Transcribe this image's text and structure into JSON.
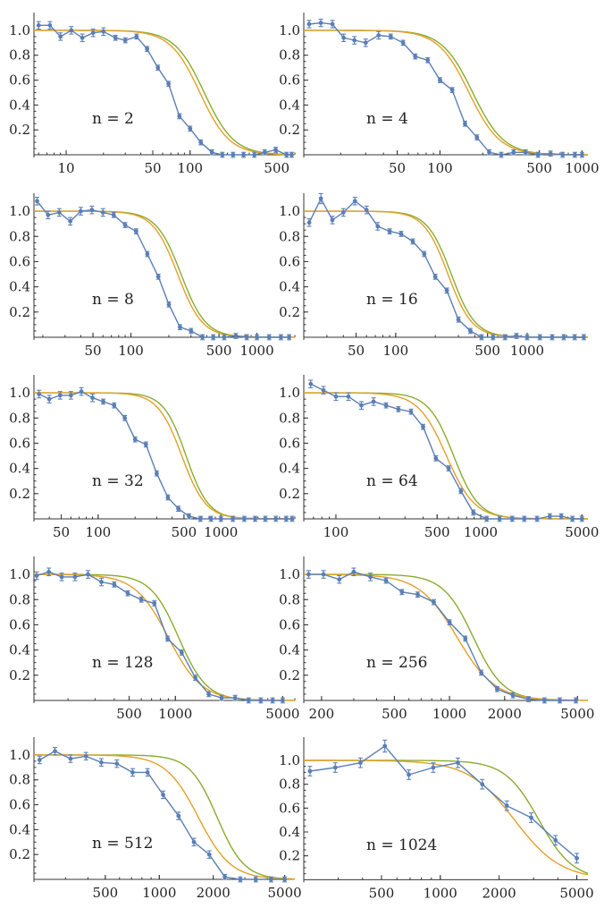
{
  "colors": {
    "data": "#5b7fb5",
    "fit_green": "#8aac2e",
    "fit_orange": "#e3a02a"
  },
  "chart_data": [
    {
      "type": "line",
      "label": "n = 2",
      "xscale": "log",
      "xlim": [
        5.5,
        700
      ],
      "ylim": [
        -0.05,
        1.1
      ],
      "xticks": [
        10,
        50,
        100,
        500
      ],
      "yticks": [
        0.2,
        0.4,
        0.6,
        0.8,
        1.0
      ],
      "series": [
        {
          "kind": "data",
          "color": "data",
          "x": [
            6,
            7.4,
            9,
            11,
            13.5,
            16.5,
            20,
            25,
            30,
            37,
            45,
            55,
            67,
            82,
            100,
            122,
            150,
            182,
            222,
            270,
            330,
            400,
            490,
            600,
            660
          ],
          "y": [
            1.04,
            1.04,
            0.95,
            1.0,
            0.94,
            0.98,
            0.99,
            0.94,
            0.92,
            0.95,
            0.85,
            0.7,
            0.57,
            0.31,
            0.21,
            0.1,
            0.02,
            0.0,
            0.0,
            0.0,
            0.0,
            0.02,
            0.04,
            0.0,
            0.0
          ],
          "err": [
            0.03,
            0.03,
            0.03,
            0.03,
            0.03,
            0.03,
            0.03,
            0.02,
            0.02,
            0.02,
            0.02,
            0.02,
            0.02,
            0.02,
            0.02,
            0.02,
            0.02,
            0.02,
            0.02,
            0.02,
            0.02,
            0.02,
            0.02,
            0.02,
            0.02
          ]
        },
        {
          "kind": "fit",
          "color": "fit_green",
          "x0": 130,
          "w": 0.55
        },
        {
          "kind": "fit",
          "color": "fit_orange",
          "x0": 120,
          "w": 0.55
        }
      ]
    },
    {
      "type": "line",
      "label": "n = 4",
      "xscale": "log",
      "xlim": [
        11,
        1100
      ],
      "ylim": [
        -0.05,
        1.1
      ],
      "xticks": [
        50,
        100,
        500,
        1000
      ],
      "yticks": [
        0.2,
        0.4,
        0.6,
        0.8,
        1.0
      ],
      "series": [
        {
          "kind": "data",
          "color": "data",
          "x": [
            12,
            14.5,
            17.5,
            21,
            25,
            30,
            37,
            45,
            55,
            67,
            82,
            100,
            122,
            150,
            182,
            222,
            270,
            330,
            400,
            490,
            600,
            730,
            890,
            1000
          ],
          "y": [
            1.05,
            1.06,
            1.05,
            0.94,
            0.92,
            0.9,
            0.96,
            0.95,
            0.9,
            0.79,
            0.76,
            0.6,
            0.52,
            0.25,
            0.14,
            0.02,
            0.0,
            0.02,
            0.02,
            0.0,
            0.01,
            0.0,
            0.0,
            0.0
          ],
          "err": [
            0.03,
            0.03,
            0.03,
            0.03,
            0.03,
            0.03,
            0.03,
            0.02,
            0.02,
            0.02,
            0.02,
            0.02,
            0.02,
            0.02,
            0.02,
            0.02,
            0.02,
            0.02,
            0.02,
            0.02,
            0.02,
            0.02,
            0.02,
            0.02
          ]
        },
        {
          "kind": "fit",
          "color": "fit_green",
          "x0": 170,
          "w": 0.5
        },
        {
          "kind": "fit",
          "color": "fit_orange",
          "x0": 160,
          "w": 0.5
        }
      ]
    },
    {
      "type": "line",
      "label": "n = 8",
      "xscale": "log",
      "xlim": [
        17,
        2000
      ],
      "ylim": [
        -0.05,
        1.1
      ],
      "xticks": [
        50,
        100,
        500,
        1000
      ],
      "yticks": [
        0.2,
        0.4,
        0.6,
        0.8,
        1.0
      ],
      "series": [
        {
          "kind": "data",
          "color": "data",
          "x": [
            18,
            22,
            27,
            33,
            40,
            49,
            60,
            73,
            90,
            110,
            135,
            165,
            200,
            245,
            300,
            370,
            450,
            550,
            680,
            830,
            1000,
            1250,
            1550,
            1800
          ],
          "y": [
            1.08,
            0.97,
            0.99,
            0.92,
            1.0,
            1.01,
            0.99,
            0.97,
            0.89,
            0.84,
            0.66,
            0.48,
            0.26,
            0.08,
            0.05,
            0.0,
            0.0,
            0.0,
            0.01,
            0.0,
            0.0,
            0.0,
            0.0,
            0.0
          ],
          "err": [
            0.03,
            0.03,
            0.03,
            0.03,
            0.03,
            0.03,
            0.03,
            0.02,
            0.02,
            0.02,
            0.02,
            0.02,
            0.02,
            0.02,
            0.02,
            0.02,
            0.02,
            0.02,
            0.02,
            0.02,
            0.02,
            0.02,
            0.02,
            0.02
          ]
        },
        {
          "kind": "fit",
          "color": "fit_green",
          "x0": 250,
          "w": 0.45
        },
        {
          "kind": "fit",
          "color": "fit_orange",
          "x0": 235,
          "w": 0.45
        }
      ]
    },
    {
      "type": "line",
      "label": "n = 16",
      "xscale": "log",
      "xlim": [
        20,
        2900
      ],
      "ylim": [
        -0.05,
        1.1
      ],
      "xticks": [
        50,
        100,
        500,
        1000
      ],
      "yticks": [
        0.2,
        0.4,
        0.6,
        0.8,
        1.0
      ],
      "series": [
        {
          "kind": "data",
          "color": "data",
          "x": [
            22,
            27,
            33,
            40,
            49,
            60,
            73,
            90,
            110,
            135,
            165,
            200,
            245,
            300,
            370,
            450,
            550,
            680,
            830,
            1000,
            1250,
            1550,
            1900,
            2300,
            2700
          ],
          "y": [
            0.91,
            1.1,
            0.93,
            0.99,
            1.08,
            1.01,
            0.88,
            0.84,
            0.82,
            0.76,
            0.66,
            0.48,
            0.37,
            0.14,
            0.05,
            0.0,
            0.0,
            0.0,
            0.01,
            0.0,
            0.0,
            0.0,
            0.0,
            0.0,
            0.0
          ],
          "err": [
            0.03,
            0.04,
            0.03,
            0.03,
            0.03,
            0.03,
            0.03,
            0.02,
            0.02,
            0.02,
            0.02,
            0.02,
            0.02,
            0.02,
            0.02,
            0.02,
            0.02,
            0.02,
            0.02,
            0.02,
            0.02,
            0.02,
            0.02,
            0.02,
            0.02
          ]
        },
        {
          "kind": "fit",
          "color": "fit_green",
          "x0": 265,
          "w": 0.42
        },
        {
          "kind": "fit",
          "color": "fit_orange",
          "x0": 250,
          "w": 0.42
        }
      ]
    },
    {
      "type": "line",
      "label": "n = 32",
      "xscale": "log",
      "xlim": [
        30,
        4000
      ],
      "ylim": [
        -0.05,
        1.1
      ],
      "xticks": [
        50,
        100,
        500,
        1000
      ],
      "yticks": [
        0.2,
        0.4,
        0.6,
        0.8,
        1.0
      ],
      "series": [
        {
          "kind": "data",
          "color": "data",
          "x": [
            33,
            40,
            49,
            60,
            73,
            90,
            110,
            135,
            165,
            200,
            245,
            300,
            370,
            450,
            550,
            680,
            830,
            1000,
            1250,
            1550,
            1900,
            2300,
            2800,
            3400,
            3800
          ],
          "y": [
            0.99,
            0.95,
            0.98,
            0.98,
            1.01,
            0.96,
            0.93,
            0.9,
            0.8,
            0.63,
            0.59,
            0.36,
            0.17,
            0.08,
            0.02,
            0.0,
            0.0,
            0.0,
            0.0,
            0.0,
            0.0,
            0.0,
            0.0,
            0.0,
            0.0
          ],
          "err": [
            0.03,
            0.03,
            0.03,
            0.03,
            0.03,
            0.03,
            0.02,
            0.02,
            0.02,
            0.02,
            0.02,
            0.02,
            0.02,
            0.02,
            0.02,
            0.02,
            0.02,
            0.02,
            0.02,
            0.02,
            0.02,
            0.02,
            0.02,
            0.02,
            0.02
          ]
        },
        {
          "kind": "fit",
          "color": "fit_green",
          "x0": 520,
          "w": 0.42
        },
        {
          "kind": "fit",
          "color": "fit_orange",
          "x0": 480,
          "w": 0.45
        }
      ]
    },
    {
      "type": "line",
      "label": "n = 64",
      "xscale": "log",
      "xlim": [
        60,
        5500
      ],
      "ylim": [
        -0.05,
        1.1
      ],
      "xticks": [
        100,
        500,
        1000,
        5000
      ],
      "yticks": [
        0.2,
        0.4,
        0.6,
        0.8,
        1.0
      ],
      "series": [
        {
          "kind": "data",
          "color": "data",
          "x": [
            67,
            82,
            100,
            122,
            150,
            182,
            222,
            270,
            330,
            400,
            490,
            600,
            730,
            890,
            1100,
            1350,
            1650,
            2000,
            2450,
            3000,
            3600,
            4300,
            5000
          ],
          "y": [
            1.07,
            1.02,
            0.97,
            0.97,
            0.9,
            0.93,
            0.9,
            0.87,
            0.85,
            0.73,
            0.48,
            0.4,
            0.22,
            0.05,
            0.0,
            0.0,
            0.0,
            0.0,
            0.0,
            0.02,
            0.02,
            0.0,
            0.0
          ],
          "err": [
            0.03,
            0.03,
            0.03,
            0.03,
            0.03,
            0.03,
            0.02,
            0.02,
            0.02,
            0.02,
            0.02,
            0.02,
            0.02,
            0.02,
            0.02,
            0.02,
            0.02,
            0.02,
            0.02,
            0.02,
            0.02,
            0.02,
            0.02
          ]
        },
        {
          "kind": "fit",
          "color": "fit_green",
          "x0": 650,
          "w": 0.4
        },
        {
          "kind": "fit",
          "color": "fit_orange",
          "x0": 580,
          "w": 0.45
        }
      ]
    },
    {
      "type": "line",
      "label": "n = 128",
      "xscale": "log",
      "xlim": [
        120,
        6000
      ],
      "ylim": [
        -0.05,
        1.1
      ],
      "xticks": [
        500,
        1000,
        5000
      ],
      "yticks": [
        0.2,
        0.4,
        0.6,
        0.8,
        1.0
      ],
      "series": [
        {
          "kind": "data",
          "color": "data",
          "x": [
            125,
            150,
            182,
            222,
            270,
            330,
            400,
            490,
            600,
            730,
            890,
            1100,
            1350,
            1650,
            2000,
            2450,
            3000,
            3600,
            4300,
            5000
          ],
          "y": [
            0.99,
            1.02,
            0.98,
            0.98,
            1.0,
            0.94,
            0.92,
            0.85,
            0.8,
            0.77,
            0.49,
            0.38,
            0.18,
            0.05,
            0.02,
            0.02,
            0.0,
            0.0,
            0.0,
            0.0
          ],
          "err": [
            0.03,
            0.03,
            0.03,
            0.03,
            0.03,
            0.03,
            0.02,
            0.02,
            0.02,
            0.02,
            0.02,
            0.02,
            0.02,
            0.02,
            0.02,
            0.02,
            0.02,
            0.02,
            0.02,
            0.02
          ]
        },
        {
          "kind": "fit",
          "color": "fit_green",
          "x0": 1050,
          "w": 0.42
        },
        {
          "kind": "fit",
          "color": "fit_orange",
          "x0": 900,
          "w": 0.5
        }
      ]
    },
    {
      "type": "line",
      "label": "n = 256",
      "xscale": "log",
      "xlim": [
        160,
        5700
      ],
      "ylim": [
        -0.05,
        1.1
      ],
      "xticks": [
        200,
        500,
        1000,
        2000,
        5000
      ],
      "yticks": [
        0.2,
        0.4,
        0.6,
        0.8,
        1.0
      ],
      "series": [
        {
          "kind": "data",
          "color": "data",
          "x": [
            170,
            205,
            250,
            300,
            370,
            450,
            550,
            670,
            820,
            1000,
            1220,
            1490,
            1820,
            2220,
            2700,
            3300,
            4000,
            4900
          ],
          "y": [
            1.0,
            1.0,
            0.96,
            1.02,
            0.98,
            0.95,
            0.86,
            0.84,
            0.78,
            0.62,
            0.49,
            0.22,
            0.09,
            0.04,
            0.01,
            0.0,
            0.0,
            0.0
          ],
          "err": [
            0.03,
            0.03,
            0.03,
            0.03,
            0.03,
            0.02,
            0.02,
            0.02,
            0.02,
            0.02,
            0.02,
            0.02,
            0.02,
            0.02,
            0.02,
            0.02,
            0.02,
            0.02
          ]
        },
        {
          "kind": "fit",
          "color": "fit_green",
          "x0": 1350,
          "w": 0.38
        },
        {
          "kind": "fit",
          "color": "fit_orange",
          "x0": 1100,
          "w": 0.48
        }
      ]
    },
    {
      "type": "line",
      "label": "n = 512",
      "xscale": "log",
      "xlim": [
        200,
        5700
      ],
      "ylim": [
        -0.05,
        1.1
      ],
      "xticks": [
        500,
        1000,
        2000,
        5000
      ],
      "yticks": [
        0.2,
        0.4,
        0.6,
        0.8,
        1.0
      ],
      "series": [
        {
          "kind": "data",
          "color": "data",
          "x": [
            215,
            262,
            320,
            390,
            475,
            580,
            710,
            860,
            1050,
            1280,
            1560,
            1900,
            2320,
            2830,
            3450,
            4200,
            5000
          ],
          "y": [
            0.96,
            1.03,
            0.97,
            0.99,
            0.94,
            0.93,
            0.86,
            0.86,
            0.68,
            0.51,
            0.3,
            0.2,
            0.02,
            0.0,
            0.0,
            0.0,
            0.0
          ],
          "err": [
            0.03,
            0.03,
            0.03,
            0.03,
            0.03,
            0.03,
            0.03,
            0.03,
            0.03,
            0.03,
            0.03,
            0.03,
            0.02,
            0.02,
            0.02,
            0.02,
            0.02
          ]
        },
        {
          "kind": "fit",
          "color": "fit_green",
          "x0": 2100,
          "w": 0.35
        },
        {
          "kind": "fit",
          "color": "fit_orange",
          "x0": 1650,
          "w": 0.42
        }
      ]
    },
    {
      "type": "line",
      "label": "n = 1024",
      "xscale": "log",
      "xlim": [
        200,
        5700
      ],
      "ylim": [
        -0.05,
        1.15
      ],
      "xticks": [
        500,
        1000,
        2000,
        5000
      ],
      "yticks": [
        0.2,
        0.4,
        0.6,
        0.8,
        1.0
      ],
      "series": [
        {
          "kind": "data",
          "color": "data",
          "x": [
            215,
            290,
            390,
            520,
            690,
            920,
            1230,
            1640,
            2190,
            2920,
            3890,
            5000
          ],
          "y": [
            0.91,
            0.94,
            0.98,
            1.12,
            0.88,
            0.94,
            0.98,
            0.8,
            0.62,
            0.52,
            0.33,
            0.18
          ],
          "err": [
            0.04,
            0.04,
            0.04,
            0.05,
            0.04,
            0.04,
            0.04,
            0.04,
            0.04,
            0.04,
            0.04,
            0.04
          ]
        },
        {
          "kind": "fit",
          "color": "fit_green",
          "x0": 3200,
          "w": 0.4
        },
        {
          "kind": "fit",
          "color": "fit_orange",
          "x0": 2400,
          "w": 0.55
        }
      ]
    }
  ]
}
